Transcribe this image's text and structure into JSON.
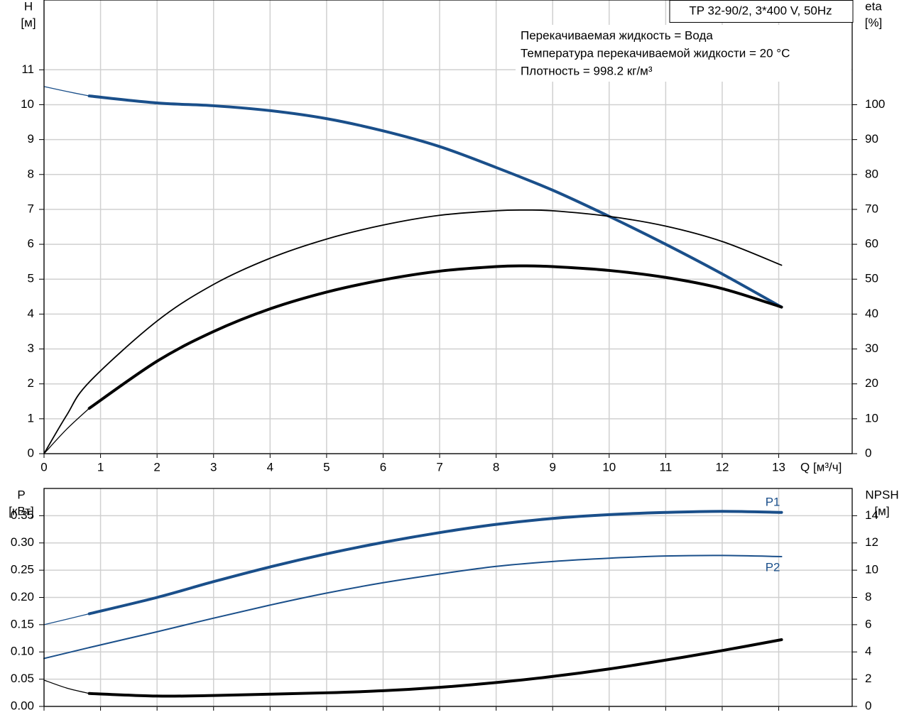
{
  "chart_data": [
    {
      "type": "line",
      "title": "TP 32-90/2, 3*400 V, 50Hz",
      "annotations": [
        "Перекачиваемая жидкость = Вода",
        "Температура перекачиваемой жидкости = 20 °C",
        "Плотность = 998.2 кг/м³"
      ],
      "ylabel": [
        "H",
        "[м]"
      ],
      "y2label": [
        "eta",
        "[%]"
      ],
      "xlabel": "Q [м³/ч]",
      "xlim": [
        0,
        14.3
      ],
      "xticks": [
        0,
        1,
        2,
        3,
        4,
        5,
        6,
        7,
        8,
        9,
        10,
        11,
        12,
        13
      ],
      "ylim": [
        0,
        13
      ],
      "yticks": [
        0,
        1,
        2,
        3,
        4,
        5,
        6,
        7,
        8,
        9,
        10,
        11
      ],
      "y2lim": [
        0,
        130
      ],
      "y2ticks": [
        0,
        10,
        20,
        30,
        40,
        50,
        60,
        70,
        80,
        90,
        100
      ],
      "grid": true,
      "series": [
        {
          "color": "#1a4f8a",
          "width": 1.3,
          "x": [
            0,
            0.4,
            0.8
          ],
          "values": [
            10.52,
            10.38,
            10.25
          ]
        },
        {
          "color": "#1a4f8a",
          "width": 4,
          "x": [
            0.8,
            2,
            3,
            4,
            5,
            6,
            7,
            8,
            9,
            10,
            11,
            12,
            13.05
          ],
          "values": [
            10.25,
            10.05,
            9.97,
            9.83,
            9.6,
            9.25,
            8.8,
            8.2,
            7.55,
            6.8,
            6.0,
            5.15,
            4.2
          ]
        },
        {
          "color": "#000000",
          "width": 1.3,
          "axis": "y2",
          "x": [
            0,
            0.4,
            0.8
          ],
          "values": [
            0,
            7,
            13
          ]
        },
        {
          "color": "#000000",
          "width": 4,
          "axis": "y2",
          "x": [
            0.8,
            2,
            3,
            4,
            5,
            6,
            7,
            8,
            8.5,
            9,
            10,
            11,
            12,
            13.05
          ],
          "values": [
            13,
            26.5,
            35,
            41.5,
            46.3,
            49.8,
            52.3,
            53.6,
            53.8,
            53.6,
            52.5,
            50.5,
            47.3,
            42
          ]
        },
        {
          "color": "#000000",
          "width": 1.8,
          "axis": "y2",
          "x": [
            0,
            0.4,
            0.8,
            2,
            3,
            4,
            5,
            6,
            7,
            8,
            8.5,
            9,
            10,
            11,
            12,
            13.05
          ],
          "values": [
            0,
            11,
            20.5,
            38,
            48.5,
            56,
            61.5,
            65.5,
            68.3,
            69.6,
            69.8,
            69.6,
            68,
            65.2,
            60.8,
            54
          ]
        }
      ]
    },
    {
      "type": "line",
      "ylabel": [
        "P",
        "[кВт]"
      ],
      "y2label": [
        "NPSH",
        "[м]"
      ],
      "xlim": [
        0,
        14.3
      ],
      "ylim": [
        0,
        0.4
      ],
      "yticks": [
        {
          "value": 0,
          "label": "0.00"
        },
        0.05,
        {
          "value": 0.1,
          "label": "0.10"
        },
        0.15,
        {
          "value": 0.2,
          "label": "0.20"
        },
        0.25,
        {
          "value": 0.3,
          "label": "0.30"
        },
        0.35
      ],
      "y2lim": [
        0,
        16
      ],
      "y2ticks": [
        0,
        2,
        4,
        6,
        8,
        10,
        12,
        14
      ],
      "grid": true,
      "series": [
        {
          "color": "#1a4f8a",
          "width": 1.3,
          "x": [
            0,
            0.8
          ],
          "values": [
            0.15,
            0.17
          ]
        },
        {
          "name": "P1",
          "color": "#1a4f8a",
          "width": 4,
          "x": [
            0.8,
            2,
            3,
            4,
            5,
            6,
            7,
            8,
            9,
            10,
            11,
            12,
            13.05
          ],
          "values": [
            0.17,
            0.2,
            0.229,
            0.256,
            0.28,
            0.301,
            0.319,
            0.334,
            0.345,
            0.352,
            0.356,
            0.358,
            0.356
          ]
        },
        {
          "name": "P2",
          "color": "#1a4f8a",
          "width": 2,
          "x": [
            0,
            0.8,
            2,
            3,
            4,
            5,
            6,
            7,
            8,
            9,
            10,
            11,
            12,
            13.05
          ],
          "values": [
            0.088,
            0.108,
            0.137,
            0.162,
            0.186,
            0.208,
            0.227,
            0.243,
            0.257,
            0.266,
            0.272,
            0.276,
            0.277,
            0.275
          ]
        },
        {
          "color": "#000000",
          "width": 1.3,
          "axis": "y2",
          "x": [
            0,
            0.4,
            0.8
          ],
          "values": [
            1.93,
            1.35,
            0.95
          ]
        },
        {
          "color": "#000000",
          "width": 4,
          "axis": "y2",
          "x": [
            0.8,
            2,
            3,
            4,
            5,
            6,
            7,
            8,
            9,
            10,
            11,
            12,
            13.05
          ],
          "values": [
            0.95,
            0.76,
            0.8,
            0.9,
            1.0,
            1.15,
            1.4,
            1.75,
            2.2,
            2.75,
            3.4,
            4.1,
            4.9
          ]
        }
      ]
    }
  ]
}
